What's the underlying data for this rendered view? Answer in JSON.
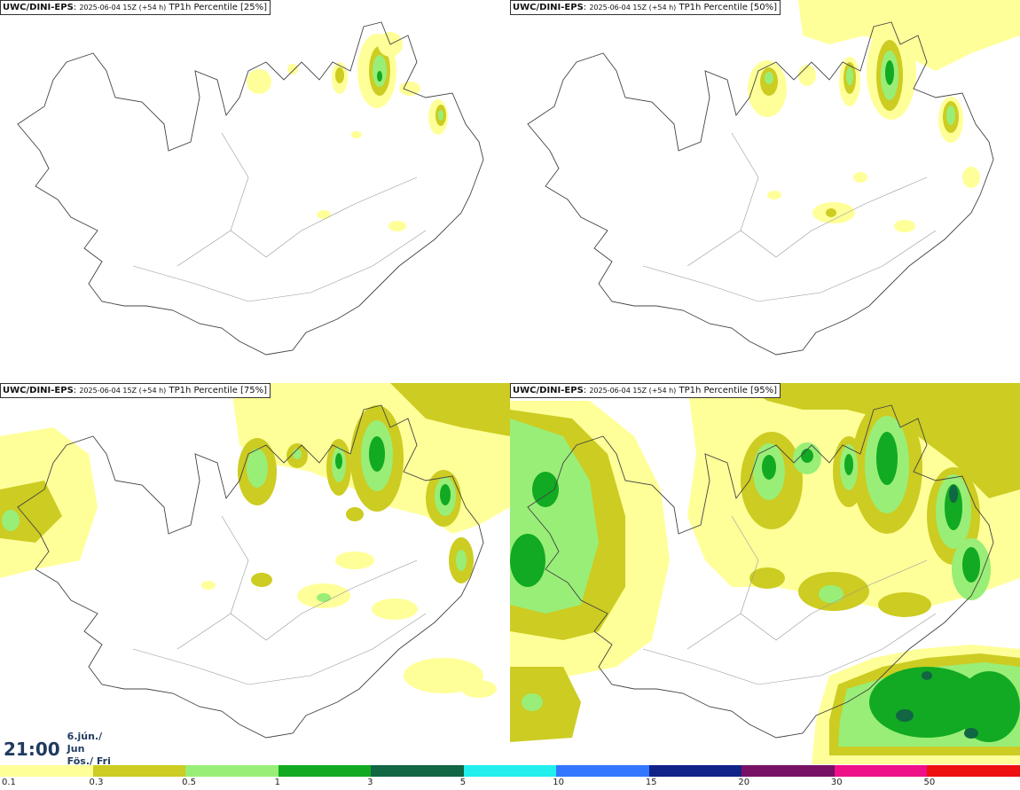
{
  "panels": [
    {
      "model": "UWC/DINI-EPS",
      "run": "2025-06-04 15Z (+54 h)",
      "field": "TP1h Percentile [25%]"
    },
    {
      "model": "UWC/DINI-EPS",
      "run": "2025-06-04 15Z (+54 h)",
      "field": "TP1h Percentile [50%]"
    },
    {
      "model": "UWC/DINI-EPS",
      "run": "2025-06-04 15Z (+54 h)",
      "field": "TP1h Percentile [75%]"
    },
    {
      "model": "UWC/DINI-EPS",
      "run": "2025-06-04 15Z (+54 h)",
      "field": "TP1h Percentile [95%]"
    }
  ],
  "valid_time": {
    "time": "21:00",
    "date_line1": "6.jún./ Jun",
    "date_line2": "Fös./ Fri"
  },
  "color_scale": {
    "labels": [
      "0.1",
      "0.3",
      "0.5",
      "1",
      "3",
      "5",
      "10",
      "15",
      "20",
      "30",
      "50"
    ],
    "colors": [
      "#ffff99",
      "#cccc22",
      "#99ee77",
      "#11aa22",
      "#116644",
      "#22eeee",
      "#3377ff",
      "#112288",
      "#771166",
      "#ee1188",
      "#ee1111"
    ]
  }
}
